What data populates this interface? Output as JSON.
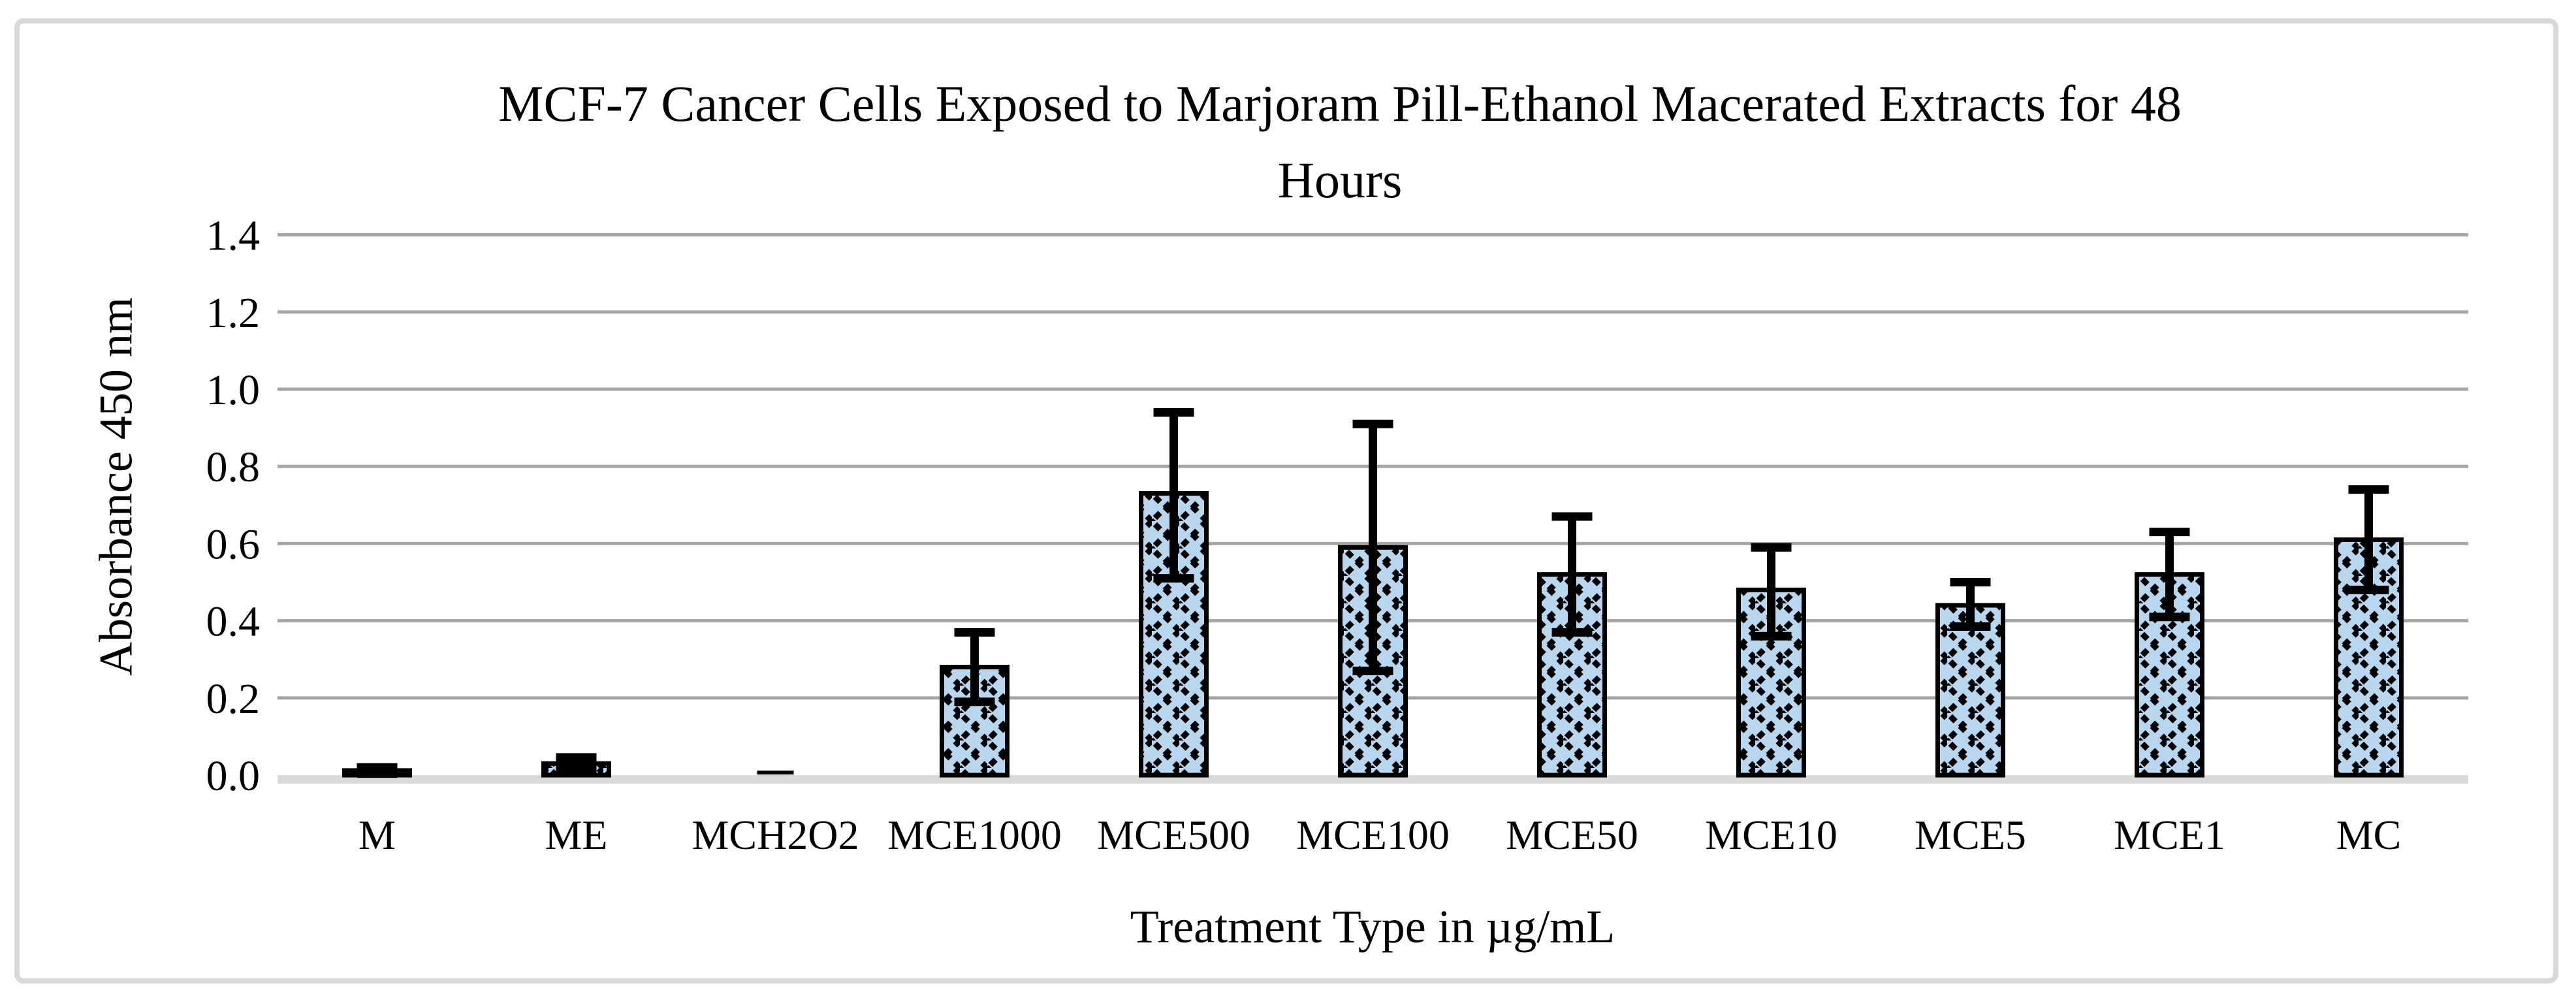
{
  "figure": {
    "background": "#FFFFFF",
    "border_color": "#D9D9D9"
  },
  "chart_data": {
    "type": "bar",
    "title": "MCF-7 Cancer Cells Exposed to Marjoram Pill-Ethanol Macerated Extracts for 48 Hours",
    "title_lines": [
      "MCF-7 Cancer Cells Exposed to Marjoram Pill-Ethanol Macerated Extracts for 48",
      "Hours"
    ],
    "xlabel": "Treatment Type in µg/mL",
    "ylabel": "Absorbance 450 nm",
    "categories": [
      "M",
      "ME",
      "MCH2O2",
      "MCE1000",
      "MCE500",
      "MCE100",
      "MCE50",
      "MCE10",
      "MCE5",
      "MCE1",
      "MC"
    ],
    "values": [
      0.012,
      0.03,
      0.003,
      0.28,
      0.73,
      0.59,
      0.52,
      0.48,
      0.44,
      0.52,
      0.61
    ],
    "error_up": [
      0.008,
      0.016,
      0,
      0.09,
      0.21,
      0.32,
      0.15,
      0.11,
      0.06,
      0.11,
      0.13
    ],
    "error_down": [
      0.008,
      0.016,
      0,
      0.09,
      0.22,
      0.32,
      0.15,
      0.12,
      0.055,
      0.11,
      0.13
    ],
    "ylim": [
      0,
      1.4
    ],
    "ytick_step": 0.2,
    "ytick_labels": [
      "0.0",
      "0.2",
      "0.4",
      "0.6",
      "0.8",
      "1.0",
      "1.2",
      "1.4"
    ],
    "grid": true,
    "legend": "none",
    "bar_fill": "#B9D6EF",
    "bar_outline": "#000000",
    "bar_pattern": "dashed-diagonal-crosshatch",
    "gridline_color": "#A6A6A6",
    "baseline_color": "#D9D9D9",
    "text_color": "#000000"
  }
}
